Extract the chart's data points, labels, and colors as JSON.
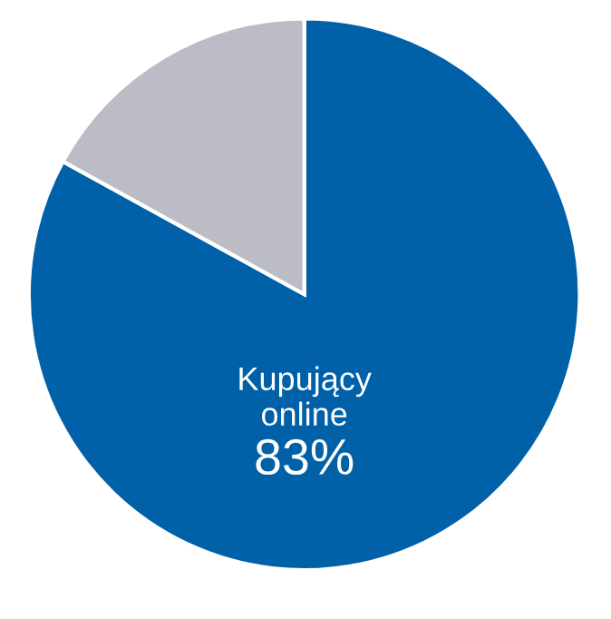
{
  "chart_data": {
    "type": "pie",
    "categories": [
      "Kupujący\nonline",
      null
    ],
    "values": [
      83,
      17
    ],
    "colors": [
      "#0061a8",
      "#bcbcc6"
    ],
    "value_labels": [
      "83%",
      null
    ]
  }
}
